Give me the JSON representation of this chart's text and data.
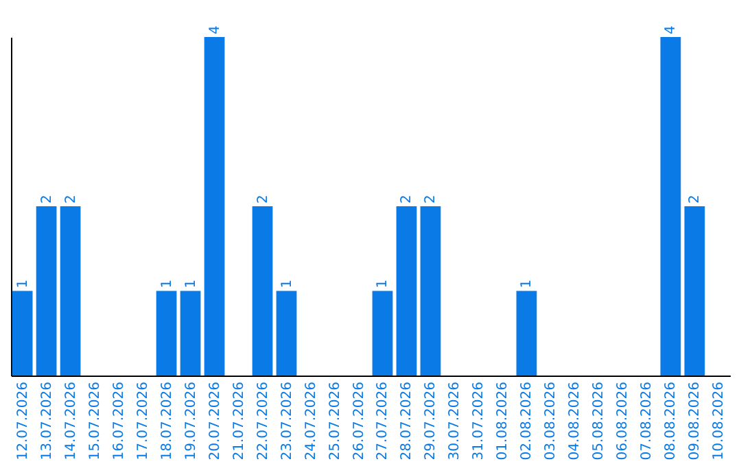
{
  "chart_data": {
    "type": "bar",
    "categories": [
      "12.07.2026",
      "13.07.2026",
      "14.07.2026",
      "15.07.2026",
      "16.07.2026",
      "17.07.2026",
      "18.07.2026",
      "19.07.2026",
      "20.07.2026",
      "21.07.2026",
      "22.07.2026",
      "23.07.2026",
      "24.07.2026",
      "25.07.2026",
      "26.07.2026",
      "27.07.2026",
      "28.07.2026",
      "29.07.2026",
      "30.07.2026",
      "31.07.2026",
      "01.08.2026",
      "02.08.2026",
      "03.08.2026",
      "04.08.2026",
      "05.08.2026",
      "06.08.2026",
      "07.08.2026",
      "08.08.2026",
      "09.08.2026",
      "10.08.2026"
    ],
    "values": [
      1,
      2,
      2,
      0,
      0,
      0,
      1,
      1,
      4,
      0,
      2,
      1,
      0,
      0,
      0,
      1,
      2,
      2,
      0,
      0,
      0,
      1,
      0,
      0,
      0,
      0,
      0,
      4,
      2,
      0
    ],
    "value_labels": [
      "1",
      "2",
      "2",
      null,
      null,
      null,
      "1",
      "1",
      "4",
      null,
      "2",
      "1",
      null,
      null,
      null,
      "1",
      "2",
      "2",
      null,
      null,
      null,
      "1",
      null,
      null,
      null,
      null,
      null,
      "4",
      "2",
      null
    ],
    "color": "#0a7ae6",
    "grid": false
  }
}
